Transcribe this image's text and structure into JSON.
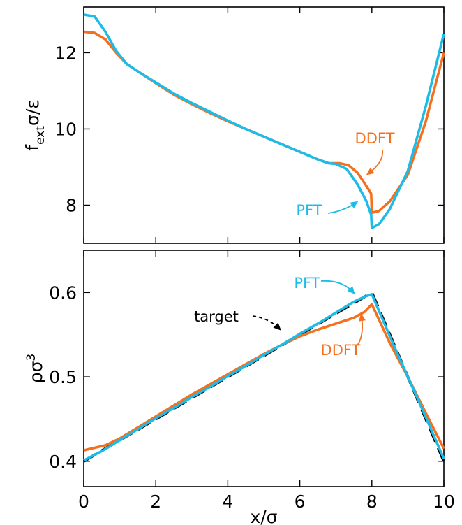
{
  "colors": {
    "ddft": "#f5701e",
    "pft": "#1dbce8",
    "target": "#000000"
  },
  "chart_data": [
    {
      "type": "line",
      "xlim": [
        0,
        10
      ],
      "ylim": [
        7.0,
        13.2
      ],
      "xticks": [
        0,
        2,
        4,
        6,
        8,
        10
      ],
      "yticks": [
        8,
        10,
        12
      ],
      "ytick_labels": [
        "8",
        "10",
        "12"
      ],
      "show_xtick_labels": false,
      "ylabel": {
        "main": "f",
        "sub": "ext",
        "rest": "σ/ε"
      },
      "annotations": [
        {
          "text": "DDFT",
          "series": "DDFT",
          "points_to": [
            7.95,
            8.75
          ]
        },
        {
          "text": "PFT",
          "series": "PFT",
          "points_to": [
            7.85,
            8.1
          ]
        }
      ],
      "series": [
        {
          "name": "DDFT",
          "color": "#f5701e",
          "dash": "solid",
          "x": [
            0,
            0.3,
            0.6,
            0.9,
            1.2,
            1.6,
            2.0,
            2.5,
            3.0,
            3.5,
            4.0,
            4.5,
            5.0,
            5.5,
            6.0,
            6.5,
            6.8,
            7.1,
            7.35,
            7.6,
            7.85,
            7.98,
            8.0,
            8.2,
            8.5,
            9.0,
            9.5,
            10.0
          ],
          "y": [
            12.55,
            12.52,
            12.35,
            12.0,
            11.7,
            11.45,
            11.2,
            10.9,
            10.65,
            10.42,
            10.2,
            10.0,
            9.8,
            9.6,
            9.4,
            9.2,
            9.1,
            9.1,
            9.05,
            8.85,
            8.5,
            8.3,
            7.8,
            7.85,
            8.1,
            8.8,
            10.2,
            12.0
          ]
        },
        {
          "name": "PFT",
          "color": "#1dbce8",
          "dash": "solid",
          "x": [
            0,
            0.3,
            0.6,
            0.9,
            1.2,
            1.6,
            2.0,
            2.5,
            3.0,
            3.5,
            4.0,
            4.5,
            5.0,
            5.5,
            6.0,
            6.5,
            6.8,
            7.0,
            7.3,
            7.6,
            7.85,
            7.98,
            8.0,
            8.2,
            8.5,
            9.0,
            9.5,
            10.0
          ],
          "y": [
            13.0,
            12.95,
            12.55,
            12.05,
            11.7,
            11.45,
            11.22,
            10.93,
            10.68,
            10.45,
            10.22,
            10.0,
            9.8,
            9.6,
            9.4,
            9.2,
            9.1,
            9.08,
            8.95,
            8.55,
            8.1,
            7.75,
            7.4,
            7.5,
            7.9,
            8.9,
            10.6,
            12.5
          ]
        }
      ]
    },
    {
      "type": "line",
      "xlim": [
        0,
        10
      ],
      "ylim": [
        0.37,
        0.65
      ],
      "xticks": [
        0,
        2,
        4,
        6,
        8,
        10
      ],
      "xtick_labels": [
        "0",
        "2",
        "4",
        "6",
        "8",
        "10"
      ],
      "yticks": [
        0.4,
        0.5,
        0.6
      ],
      "ytick_labels": [
        "0.4",
        "0.5",
        "0.6"
      ],
      "show_xtick_labels": true,
      "xlabel": "x/σ",
      "ylabel": {
        "main": "ρσ",
        "sup": "3"
      },
      "annotations": [
        {
          "text": "PFT",
          "series": "PFT",
          "points_to": [
            7.65,
            0.592
          ]
        },
        {
          "text": "target",
          "series": "target",
          "points_to": [
            5.5,
            0.537
          ]
        },
        {
          "text": "DDFT",
          "series": "DDFT",
          "points_to": [
            7.75,
            0.577
          ]
        }
      ],
      "series": [
        {
          "name": "target",
          "color": "#000000",
          "dash": "dashed",
          "x": [
            0,
            8,
            10
          ],
          "y": [
            0.4,
            0.6,
            0.4
          ]
        },
        {
          "name": "DDFT",
          "color": "#f5701e",
          "dash": "solid",
          "x": [
            0,
            0.3,
            0.6,
            1.0,
            1.5,
            2.0,
            2.5,
            3.0,
            3.5,
            4.0,
            4.5,
            5.0,
            5.5,
            6.0,
            6.5,
            7.0,
            7.5,
            7.8,
            8.0,
            8.5,
            9.0,
            9.5,
            10.0
          ],
          "y": [
            0.413,
            0.416,
            0.419,
            0.427,
            0.44,
            0.453,
            0.466,
            0.479,
            0.491,
            0.503,
            0.515,
            0.527,
            0.538,
            0.548,
            0.556,
            0.563,
            0.57,
            0.577,
            0.586,
            0.54,
            0.5,
            0.457,
            0.415
          ]
        },
        {
          "name": "PFT",
          "color": "#1dbce8",
          "dash": "solid",
          "x": [
            0,
            0.5,
            1.0,
            1.5,
            2.0,
            2.5,
            3.0,
            3.5,
            4.0,
            4.5,
            5.0,
            5.5,
            6.0,
            6.5,
            7.0,
            7.5,
            7.8,
            8.0,
            8.5,
            9.0,
            9.5,
            10.0
          ],
          "y": [
            0.401,
            0.412,
            0.425,
            0.438,
            0.451,
            0.463,
            0.476,
            0.488,
            0.501,
            0.513,
            0.526,
            0.538,
            0.551,
            0.563,
            0.576,
            0.589,
            0.595,
            0.598,
            0.548,
            0.5,
            0.452,
            0.403
          ]
        }
      ]
    }
  ]
}
